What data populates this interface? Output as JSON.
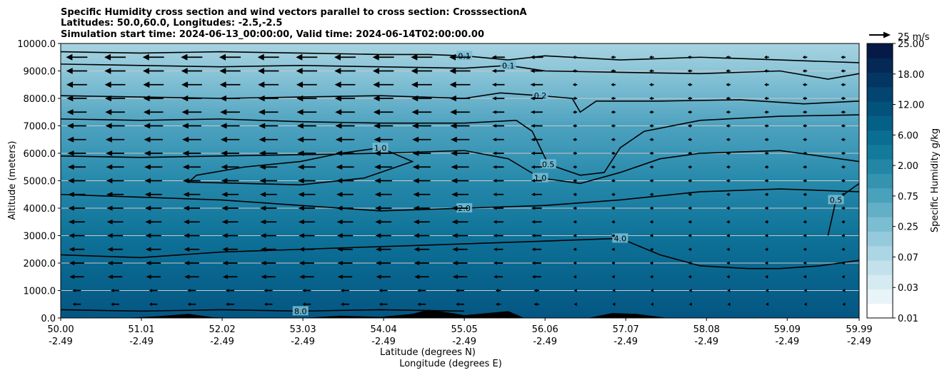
{
  "chart_data": {
    "type": "contour",
    "title_lines": [
      "Specific Humidity cross section and wind vectors parallel to cross section: CrosssectionA",
      "Latitudes: 50.0,60.0, Longitudes: -2.5,-2.5",
      "Simulation start time: 2024-06-13_00:00:00, Valid time: 2024-06-14T02:00:00.00"
    ],
    "ylabel": "Altitude (meters)",
    "xlabel_lines": [
      "Latitude (degrees N)",
      "Longitude (degrees E)"
    ],
    "ylim": [
      0,
      10000
    ],
    "y_ticks": [
      "0.0",
      "1000.0",
      "2000.0",
      "3000.0",
      "4000.0",
      "5000.0",
      "6000.0",
      "7000.0",
      "8000.0",
      "9000.0",
      "10000.0"
    ],
    "x_ticks": [
      {
        "lat": "50.00",
        "lon": "-2.49"
      },
      {
        "lat": "51.01",
        "lon": "-2.49"
      },
      {
        "lat": "52.02",
        "lon": "-2.49"
      },
      {
        "lat": "53.03",
        "lon": "-2.49"
      },
      {
        "lat": "54.04",
        "lon": "-2.49"
      },
      {
        "lat": "55.05",
        "lon": "-2.49"
      },
      {
        "lat": "56.06",
        "lon": "-2.49"
      },
      {
        "lat": "57.07",
        "lon": "-2.49"
      },
      {
        "lat": "58.08",
        "lon": "-2.49"
      },
      {
        "lat": "59.09",
        "lon": "-2.49"
      },
      {
        "lat": "59.99",
        "lon": "-2.49"
      }
    ],
    "xlim": [
      50.0,
      59.99
    ],
    "grid": "horizontal",
    "colorbar": {
      "label": "Specific Humidity g/kg",
      "tick_labels": [
        "0.01",
        "0.03",
        "0.07",
        "0.25",
        "0.75",
        "2.00",
        "6.00",
        "12.00",
        "18.00",
        "25.00"
      ],
      "levels": [
        0.01,
        0.02,
        0.03,
        0.05,
        0.07,
        0.1,
        0.25,
        0.5,
        0.75,
        1.0,
        2.0,
        4.0,
        6.0,
        8.0,
        12.0,
        15.0,
        18.0,
        22.0,
        25.0
      ],
      "colors": [
        "#ffffff",
        "#e9f4f8",
        "#d6ebf1",
        "#c2e1ea",
        "#acd6e3",
        "#94cadb",
        "#7bbdd1",
        "#62afc6",
        "#4aa1bb",
        "#3593b0",
        "#2386a6",
        "#137a9c",
        "#0a6e92",
        "#056087",
        "#03527c",
        "#034470",
        "#043663",
        "#052855",
        "#061a48"
      ]
    },
    "quiver_key": {
      "label": "25 m/s",
      "value": 25
    },
    "contour_lines": [
      {
        "level": 0.1,
        "label": "0.1",
        "points": [
          [
            50.0,
            9700
          ],
          [
            51.0,
            9650
          ],
          [
            52.0,
            9700
          ],
          [
            53.0,
            9650
          ],
          [
            54.0,
            9600
          ],
          [
            54.6,
            9600
          ],
          [
            55.05,
            9550
          ],
          [
            55.6,
            9400
          ],
          [
            56.06,
            9550
          ],
          [
            57.0,
            9400
          ],
          [
            58.0,
            9500
          ],
          [
            59.0,
            9400
          ],
          [
            59.99,
            9300
          ]
        ]
      },
      {
        "level": 0.1,
        "label": "0.1",
        "points": [
          [
            50.0,
            9250
          ],
          [
            51.0,
            9200
          ],
          [
            52.0,
            9150
          ],
          [
            53.0,
            9200
          ],
          [
            54.0,
            9150
          ],
          [
            55.05,
            9100
          ],
          [
            55.6,
            9200
          ],
          [
            56.06,
            9000
          ],
          [
            57.0,
            8950
          ],
          [
            58.0,
            8900
          ],
          [
            59.0,
            9000
          ],
          [
            59.6,
            8700
          ],
          [
            59.99,
            8900
          ]
        ]
      },
      {
        "level": 0.2,
        "label": "0.2",
        "points": [
          [
            50.0,
            8100
          ],
          [
            51.0,
            8050
          ],
          [
            52.0,
            8000
          ],
          [
            53.0,
            8050
          ],
          [
            54.0,
            8100
          ],
          [
            55.05,
            8000
          ],
          [
            55.5,
            8200
          ],
          [
            56.0,
            8100
          ],
          [
            56.4,
            8000
          ],
          [
            56.5,
            7500
          ],
          [
            56.7,
            7900
          ],
          [
            57.5,
            7900
          ],
          [
            58.5,
            7950
          ],
          [
            59.3,
            7800
          ],
          [
            59.99,
            7900
          ]
        ]
      },
      {
        "level": 0.5,
        "label": "0.5",
        "points": [
          [
            50.0,
            7250
          ],
          [
            51.0,
            7200
          ],
          [
            52.0,
            7250
          ],
          [
            53.0,
            7150
          ],
          [
            54.0,
            7100
          ],
          [
            55.05,
            7100
          ],
          [
            55.7,
            7200
          ],
          [
            55.9,
            6800
          ],
          [
            56.1,
            5600
          ],
          [
            56.5,
            5200
          ],
          [
            56.8,
            5300
          ],
          [
            57.0,
            6200
          ],
          [
            57.3,
            6800
          ],
          [
            58.0,
            7200
          ],
          [
            59.0,
            7350
          ],
          [
            59.99,
            7400
          ]
        ]
      },
      {
        "level": 1.0,
        "label": "1.0",
        "points": [
          [
            50.0,
            5900
          ],
          [
            51.0,
            5850
          ],
          [
            52.0,
            5900
          ],
          [
            53.0,
            5950
          ],
          [
            54.0,
            6000
          ],
          [
            55.05,
            6100
          ],
          [
            55.6,
            5800
          ],
          [
            56.0,
            5100
          ],
          [
            56.5,
            4900
          ],
          [
            57.0,
            5300
          ],
          [
            57.5,
            5800
          ],
          [
            58.0,
            6000
          ],
          [
            59.0,
            6100
          ],
          [
            59.99,
            5700
          ]
        ]
      },
      {
        "level": 1.0,
        "label": "1.0",
        "points": [
          [
            51.6,
            4950
          ],
          [
            52.3,
            4900
          ],
          [
            53.0,
            4850
          ],
          [
            53.8,
            5100
          ],
          [
            54.4,
            5700
          ],
          [
            54.0,
            6200
          ],
          [
            53.5,
            6000
          ],
          [
            53.0,
            5700
          ],
          [
            52.3,
            5500
          ],
          [
            51.7,
            5200
          ],
          [
            51.6,
            4950
          ]
        ]
      },
      {
        "level": 2.0,
        "label": "2.0",
        "points": [
          [
            50.0,
            4500
          ],
          [
            51.0,
            4400
          ],
          [
            52.0,
            4300
          ],
          [
            53.0,
            4100
          ],
          [
            54.0,
            3900
          ],
          [
            55.05,
            4000
          ],
          [
            56.06,
            4100
          ],
          [
            57.0,
            4300
          ],
          [
            58.0,
            4600
          ],
          [
            59.0,
            4700
          ],
          [
            59.99,
            4600
          ]
        ]
      },
      {
        "level": 4.0,
        "label": "4.0",
        "points": [
          [
            50.0,
            2300
          ],
          [
            51.0,
            2200
          ],
          [
            52.0,
            2400
          ],
          [
            53.0,
            2500
          ],
          [
            54.0,
            2600
          ],
          [
            55.05,
            2700
          ],
          [
            56.06,
            2800
          ],
          [
            57.0,
            2900
          ],
          [
            57.5,
            2300
          ],
          [
            58.0,
            1900
          ],
          [
            58.6,
            1800
          ],
          [
            59.0,
            1800
          ],
          [
            59.5,
            1900
          ],
          [
            59.99,
            2100
          ]
        ]
      },
      {
        "level": 0.5,
        "label": "0.5",
        "points": [
          [
            59.6,
            3000
          ],
          [
            59.7,
            4300
          ],
          [
            59.99,
            4900
          ]
        ]
      },
      {
        "level": 8.0,
        "label": "8.0",
        "points": [
          [
            50.0,
            300
          ],
          [
            51.0,
            250
          ],
          [
            52.0,
            300
          ],
          [
            53.0,
            250
          ],
          [
            54.0,
            300
          ],
          [
            55.05,
            250
          ]
        ]
      }
    ],
    "terrain": [
      [
        50.0,
        0
      ],
      [
        50.8,
        0
      ],
      [
        51.2,
        60
      ],
      [
        51.6,
        150
      ],
      [
        51.9,
        30
      ],
      [
        52.2,
        0
      ],
      [
        53.0,
        0
      ],
      [
        53.5,
        80
      ],
      [
        54.0,
        40
      ],
      [
        54.4,
        150
      ],
      [
        54.6,
        300
      ],
      [
        54.9,
        180
      ],
      [
        55.05,
        100
      ],
      [
        55.6,
        250
      ],
      [
        55.8,
        0
      ],
      [
        56.6,
        0
      ],
      [
        56.9,
        180
      ],
      [
        57.2,
        150
      ],
      [
        57.6,
        0
      ],
      [
        59.99,
        0
      ]
    ]
  }
}
